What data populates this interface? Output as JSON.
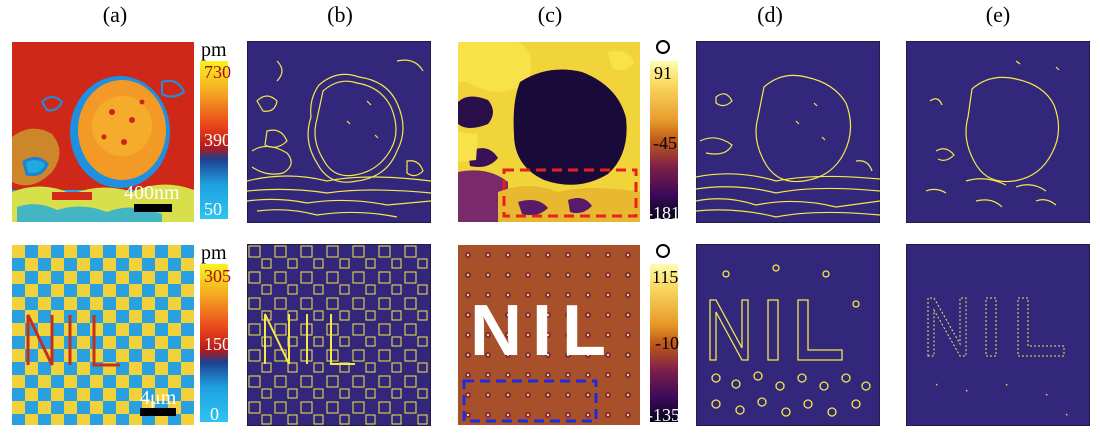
{
  "column_labels": [
    "(a)",
    "(b)",
    "(c)",
    "(d)",
    "(e)"
  ],
  "row1": {
    "a_unit": "pm",
    "a_ticks": [
      "730",
      "390",
      "50"
    ],
    "a_scalebar": "400nm",
    "c_ticks": [
      "91",
      "-45",
      "-181"
    ],
    "c_unit_symbol": "degree"
  },
  "row2": {
    "a_unit": "pm",
    "a_ticks": [
      "305",
      "150",
      "0"
    ],
    "a_scalebar": "4μm",
    "c_ticks": [
      "115",
      "-10",
      "-135"
    ],
    "c_unit_symbol": "degree",
    "c_text": "NIL"
  },
  "colors": {
    "edge_bg": "#32277a",
    "edge_line": "#f5e84a",
    "highlight_red": "#e8201c",
    "highlight_blue": "#1e2ce0"
  }
}
